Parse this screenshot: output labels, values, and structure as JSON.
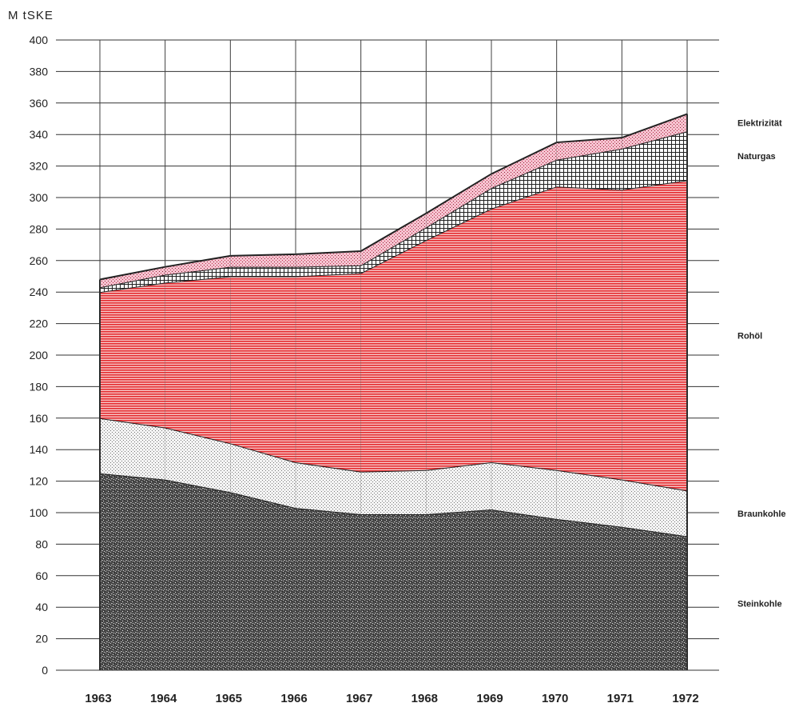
{
  "chart_data": {
    "type": "area",
    "stacked": true,
    "title": "",
    "ylabel": "M tSKE",
    "xlabel": "",
    "ylim": [
      0,
      400
    ],
    "yticks": [
      0,
      20,
      40,
      60,
      80,
      100,
      120,
      140,
      160,
      180,
      200,
      220,
      240,
      260,
      280,
      300,
      320,
      340,
      360,
      380,
      400
    ],
    "x": [
      "1963",
      "1964",
      "1965",
      "1966",
      "1967",
      "1968",
      "1969",
      "1970",
      "1971",
      "1972"
    ],
    "grid": true,
    "series": [
      {
        "name": "Steinkohle",
        "values": [
          125,
          121,
          113,
          103,
          99,
          99,
          102,
          96,
          91,
          85
        ],
        "color": "#555555"
      },
      {
        "name": "Braunkohle",
        "values": [
          35,
          33,
          31,
          29,
          27,
          28,
          30,
          31,
          30,
          29
        ],
        "color": "#bdbdbd"
      },
      {
        "name": "Rohöl",
        "values": [
          80,
          92,
          106,
          118,
          126,
          146,
          161,
          180,
          184,
          197
        ],
        "color": "#e8383d"
      },
      {
        "name": "Naturgas",
        "values": [
          3,
          5,
          6,
          6,
          5,
          8,
          13,
          17,
          26,
          31
        ],
        "color": "#9e9e9e"
      },
      {
        "name": "Elektrizität",
        "values": [
          5,
          5,
          7,
          8,
          9,
          9,
          9,
          11,
          7,
          11
        ],
        "color": "#f2b8c6"
      }
    ]
  }
}
